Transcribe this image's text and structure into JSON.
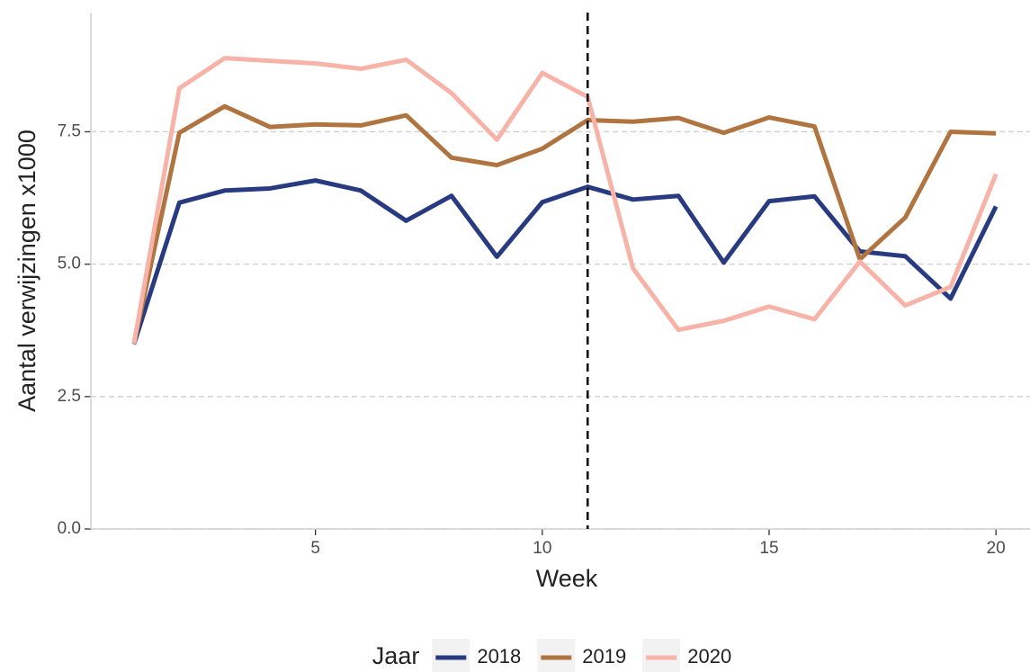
{
  "chart_data": {
    "type": "line",
    "x_label": "Week",
    "y_label": "Aantal verwijzingen x1000",
    "x": [
      1,
      2,
      3,
      4,
      5,
      6,
      7,
      8,
      9,
      10,
      11,
      12,
      13,
      14,
      15,
      16,
      17,
      18,
      19,
      20
    ],
    "series": [
      {
        "name": "2018",
        "color": "#283a80",
        "values": [
          3.49,
          6.16,
          6.39,
          6.43,
          6.58,
          6.39,
          5.82,
          6.29,
          5.14,
          6.17,
          6.46,
          6.22,
          6.29,
          5.03,
          6.19,
          6.28,
          5.24,
          5.15,
          4.35,
          6.09
        ]
      },
      {
        "name": "2019",
        "color": "#b07440",
        "values": [
          3.5,
          7.48,
          7.98,
          7.59,
          7.64,
          7.62,
          7.81,
          7.01,
          6.87,
          7.18,
          7.72,
          7.69,
          7.76,
          7.48,
          7.77,
          7.6,
          5.09,
          5.88,
          7.5,
          7.47
        ]
      },
      {
        "name": "2020",
        "color": "#f8b3a8",
        "values": [
          3.5,
          8.32,
          8.89,
          8.84,
          8.79,
          8.69,
          8.86,
          8.23,
          7.35,
          8.61,
          8.16,
          4.92,
          3.76,
          3.93,
          4.2,
          3.96,
          5.05,
          4.22,
          4.57,
          6.7
        ]
      }
    ],
    "vline": 11,
    "xlim": [
      0.05,
      20.75
    ],
    "xticks": [
      5,
      10,
      15,
      20
    ],
    "ylim": [
      0,
      9.75
    ],
    "yticks": [
      {
        "value": 0,
        "label": "0.0"
      },
      {
        "value": 2.5,
        "label": "2.5"
      },
      {
        "value": 5,
        "label": "5.0"
      },
      {
        "value": 7.5,
        "label": "7.5"
      }
    ],
    "grid": true,
    "legend_title": "Jaar",
    "legend_position": "bottom"
  }
}
